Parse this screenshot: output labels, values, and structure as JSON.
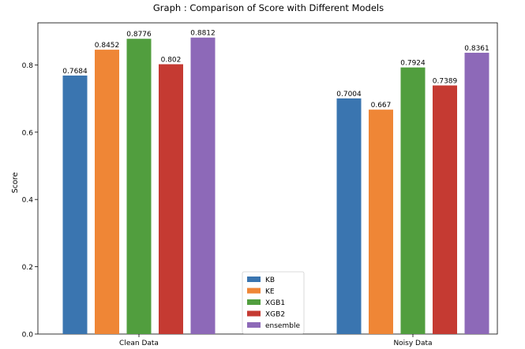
{
  "chart_data": {
    "type": "bar",
    "title": "Graph : Comparison of Score with Different Models",
    "xlabel": "",
    "ylabel": "Score",
    "categories": [
      "Clean Data",
      "Noisy Data"
    ],
    "ylim": [
      0,
      0.925
    ],
    "yticks": [
      "0.0",
      "0.2",
      "0.4",
      "0.6",
      "0.8"
    ],
    "grid": false,
    "legend_position": "bottom-center",
    "series": [
      {
        "name": "KB",
        "color": "#3a75b0",
        "values": [
          0.7684,
          0.7004
        ],
        "labels": [
          "0.7684",
          "0.7004"
        ]
      },
      {
        "name": "KE",
        "color": "#ef8636",
        "values": [
          0.8452,
          0.667
        ],
        "labels": [
          "0.8452",
          "0.667"
        ]
      },
      {
        "name": "XGB1",
        "color": "#519e3e",
        "values": [
          0.8776,
          0.7924
        ],
        "labels": [
          "0.8776",
          "0.7924"
        ]
      },
      {
        "name": "XGB2",
        "color": "#c53a32",
        "values": [
          0.802,
          0.7389
        ],
        "labels": [
          "0.802",
          "0.7389"
        ]
      },
      {
        "name": "ensemble",
        "color": "#8d69b8",
        "values": [
          0.8812,
          0.8361
        ],
        "labels": [
          "0.8812",
          "0.8361"
        ]
      }
    ]
  }
}
